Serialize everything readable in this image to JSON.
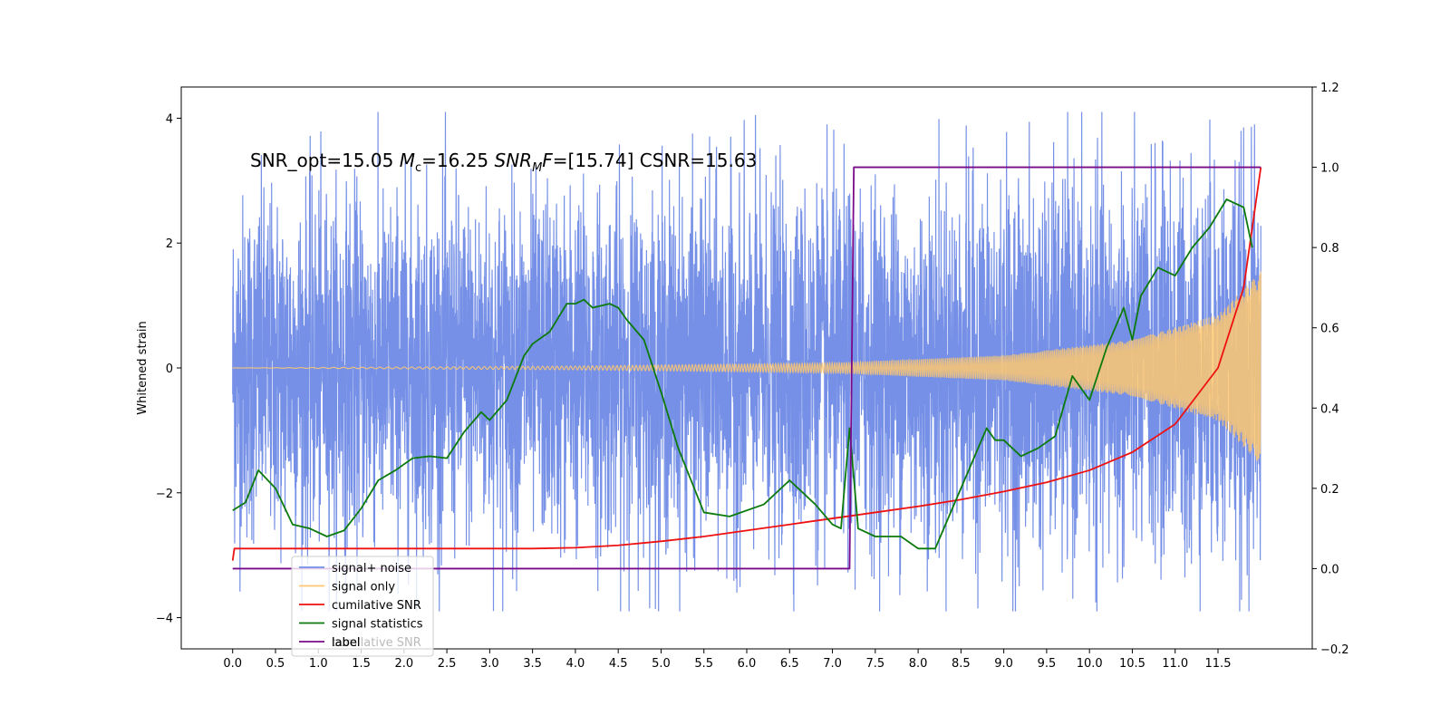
{
  "chart_data": {
    "type": "line",
    "title": "",
    "xlabel": "",
    "ylabel": "Whitened strain",
    "xlim": [
      -0.6,
      12.6
    ],
    "ylim": [
      -4.5,
      4.5
    ],
    "y2lim": [
      -0.2,
      1.2
    ],
    "grid": false,
    "legend_position": "lower-left",
    "x_ticks": [
      "0.0",
      "0.5",
      "1.0",
      "1.5",
      "2.0",
      "2.5",
      "3.0",
      "3.5",
      "4.0",
      "4.5",
      "5.0",
      "5.5",
      "6.0",
      "6.5",
      "7.0",
      "7.5",
      "8.0",
      "8.5",
      "9.0",
      "9.5",
      "10.0",
      "10.5",
      "11.0",
      "11.5"
    ],
    "y_ticks": [
      "4",
      "2",
      "0",
      "−2",
      "−4"
    ],
    "y2_ticks": [
      "1.2",
      "1.0",
      "0.8",
      "0.6",
      "0.4",
      "0.2",
      "0.0",
      "−0.2"
    ],
    "annotation": {
      "part1": "SNR_opt=15.05 ",
      "mc_symbol": "M",
      "mc_sub": "c",
      "part2": "=16.25  ",
      "snr_symbol": "SNR",
      "snr_sub": "M",
      "f_symbol": "F",
      "part3": "=[15.74] CSNR=15.63"
    },
    "legend": [
      {
        "label": "signal+ noise",
        "color": "#7590e6"
      },
      {
        "label": "signal only",
        "color": "#ffc870"
      },
      {
        "label": "cumilative SNR",
        "color": "#ee1111"
      },
      {
        "label": "signal statistics",
        "color": "#0c7a0c"
      },
      {
        "label": "label",
        "color": "#7a0a8a"
      }
    ],
    "legend_ghost": "cumilative SNR",
    "series": [
      {
        "name": "signal+ noise",
        "axis": "left",
        "color": "#7590e6",
        "x_range": [
          0.0,
          12.0
        ],
        "amplitude_envelope": [
          [
            0.0,
            1.3
          ],
          [
            7.0,
            1.3
          ],
          [
            10.0,
            1.4
          ],
          [
            12.0,
            1.5
          ]
        ],
        "peak_range": [
          -3.9,
          4.1
        ]
      },
      {
        "name": "signal only",
        "axis": "left",
        "color": "#ffc870",
        "x_range": [
          0.0,
          12.0
        ],
        "amplitude_envelope": [
          [
            0.0,
            0.0
          ],
          [
            4.0,
            0.03
          ],
          [
            7.0,
            0.08
          ],
          [
            9.0,
            0.2
          ],
          [
            10.5,
            0.45
          ],
          [
            11.5,
            0.85
          ],
          [
            12.0,
            1.55
          ]
        ]
      },
      {
        "name": "cumilative SNR",
        "axis": "right",
        "color": "#ee1111",
        "x": [
          0.0,
          0.02,
          1.0,
          2.0,
          3.0,
          3.5,
          4.0,
          4.5,
          5.0,
          5.5,
          6.0,
          6.5,
          7.0,
          7.5,
          8.0,
          8.5,
          9.0,
          9.5,
          10.0,
          10.5,
          11.0,
          11.5,
          11.8,
          12.0
        ],
        "values": [
          0.02,
          0.05,
          0.05,
          0.05,
          0.05,
          0.05,
          0.052,
          0.058,
          0.068,
          0.08,
          0.095,
          0.11,
          0.125,
          0.14,
          0.155,
          0.172,
          0.192,
          0.215,
          0.245,
          0.29,
          0.36,
          0.5,
          0.7,
          1.0
        ]
      },
      {
        "name": "signal statistics",
        "axis": "right",
        "color": "#0c7a0c",
        "x": [
          0.0,
          0.15,
          0.3,
          0.5,
          0.7,
          0.9,
          1.1,
          1.3,
          1.5,
          1.7,
          1.9,
          2.1,
          2.3,
          2.5,
          2.7,
          2.9,
          3.0,
          3.2,
          3.4,
          3.5,
          3.7,
          3.9,
          4.0,
          4.1,
          4.2,
          4.4,
          4.5,
          4.6,
          4.8,
          5.0,
          5.2,
          5.5,
          5.8,
          6.2,
          6.5,
          6.8,
          7.0,
          7.1,
          7.2,
          7.3,
          7.5,
          7.8,
          8.0,
          8.2,
          8.5,
          8.8,
          8.9,
          9.0,
          9.2,
          9.4,
          9.6,
          9.8,
          10.0,
          10.2,
          10.4,
          10.5,
          10.6,
          10.8,
          11.0,
          11.2,
          11.4,
          11.6,
          11.8,
          11.9
        ],
        "values": [
          0.145,
          0.165,
          0.245,
          0.2,
          0.11,
          0.1,
          0.08,
          0.095,
          0.15,
          0.22,
          0.245,
          0.275,
          0.28,
          0.275,
          0.34,
          0.39,
          0.37,
          0.42,
          0.53,
          0.56,
          0.59,
          0.66,
          0.66,
          0.67,
          0.65,
          0.66,
          0.65,
          0.62,
          0.57,
          0.44,
          0.3,
          0.14,
          0.13,
          0.16,
          0.22,
          0.16,
          0.11,
          0.1,
          0.35,
          0.1,
          0.08,
          0.08,
          0.05,
          0.05,
          0.2,
          0.35,
          0.32,
          0.32,
          0.28,
          0.3,
          0.33,
          0.48,
          0.42,
          0.55,
          0.65,
          0.57,
          0.68,
          0.75,
          0.73,
          0.8,
          0.85,
          0.92,
          0.9,
          0.8
        ]
      },
      {
        "name": "label",
        "axis": "right",
        "color": "#7a0a8a",
        "x": [
          0.0,
          7.2,
          7.25,
          12.0
        ],
        "values": [
          0.0,
          0.0,
          1.0,
          1.0
        ]
      }
    ]
  }
}
